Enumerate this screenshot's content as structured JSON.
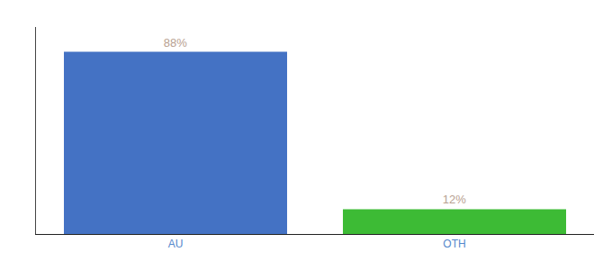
{
  "chart_data": {
    "type": "bar",
    "categories": [
      "AU",
      "OTH"
    ],
    "values": [
      88,
      12
    ],
    "value_labels": [
      "88%",
      "12%"
    ],
    "colors": [
      "#4472c4",
      "#3dbb35"
    ],
    "ylim": [
      0,
      100
    ],
    "grid": false,
    "data_labels": true,
    "tick_labels": "x"
  }
}
